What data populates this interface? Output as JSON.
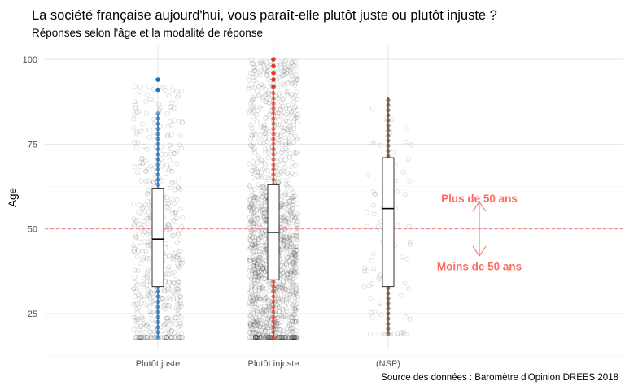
{
  "title": "La société française aujourd'hui, vous paraît-elle plutôt juste ou plutôt injuste ?",
  "subtitle": "Réponses selon l'âge et la modalité de réponse",
  "caption": "Source des données : Baromètre d'Opinion DREES 2018",
  "chart_data": {
    "type": "boxplot",
    "ylabel": "Age",
    "xlabel": "",
    "ylim": [
      12,
      102
    ],
    "yticks": [
      25,
      50,
      75,
      100
    ],
    "grid": true,
    "reference_line": {
      "y": 50,
      "style": "dashed",
      "color": "#f08080"
    },
    "categories": [
      "Plutôt juste",
      "Plutôt injuste",
      "(NSP)"
    ],
    "series": [
      {
        "category": "Plutôt juste",
        "color": "#2c6fad",
        "min": 18,
        "q1": 33,
        "median": 47,
        "q3": 62,
        "max": 84,
        "outliers": [
          91,
          94
        ],
        "n_points": 520,
        "spread": [
          18,
          94
        ]
      },
      {
        "category": "Plutôt injuste",
        "color": "#d93b2b",
        "min": 18,
        "q1": 35,
        "median": 49,
        "q3": 63,
        "max": 91,
        "outliers": [
          92,
          94,
          96,
          98,
          100
        ],
        "n_points": 1500,
        "spread": [
          18,
          100
        ]
      },
      {
        "category": "(NSP)",
        "color": "#6b4a3a",
        "min": 19,
        "q1": 33,
        "median": 56,
        "q3": 71,
        "max": 89,
        "outliers": [],
        "n_points": 90,
        "spread": [
          19,
          89
        ]
      }
    ],
    "annotations": [
      {
        "text": "Plus de 50 ans",
        "y": 59
      },
      {
        "text": "Moins de 50 ans",
        "y": 39
      }
    ],
    "annotation_color": "#ff6b5f"
  }
}
